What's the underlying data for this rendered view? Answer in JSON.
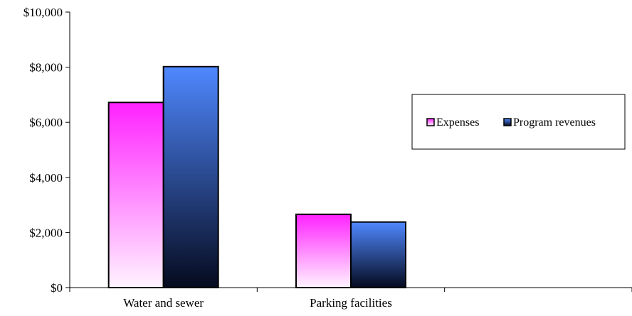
{
  "chart_data": {
    "type": "bar",
    "categories": [
      "Water and sewer",
      "Parking facilities"
    ],
    "series": [
      {
        "name": "Expenses",
        "values": [
          6720,
          2660
        ],
        "color_top": "#ff22ff",
        "color_bottom": "#fff4ff"
      },
      {
        "name": "Program revenues",
        "values": [
          8020,
          2380
        ],
        "color_top": "#4f88ff",
        "color_bottom": "#050a1e"
      }
    ],
    "ylim": [
      0,
      10000
    ],
    "y_ticks": [
      0,
      2000,
      4000,
      6000,
      8000,
      10000
    ],
    "y_tick_labels": [
      "$0",
      "$2,000",
      "$4,000",
      "$6,000",
      "$8,000",
      "$10,000"
    ],
    "legend_position": "right",
    "grid": false,
    "title": "",
    "xlabel": "",
    "ylabel": ""
  }
}
